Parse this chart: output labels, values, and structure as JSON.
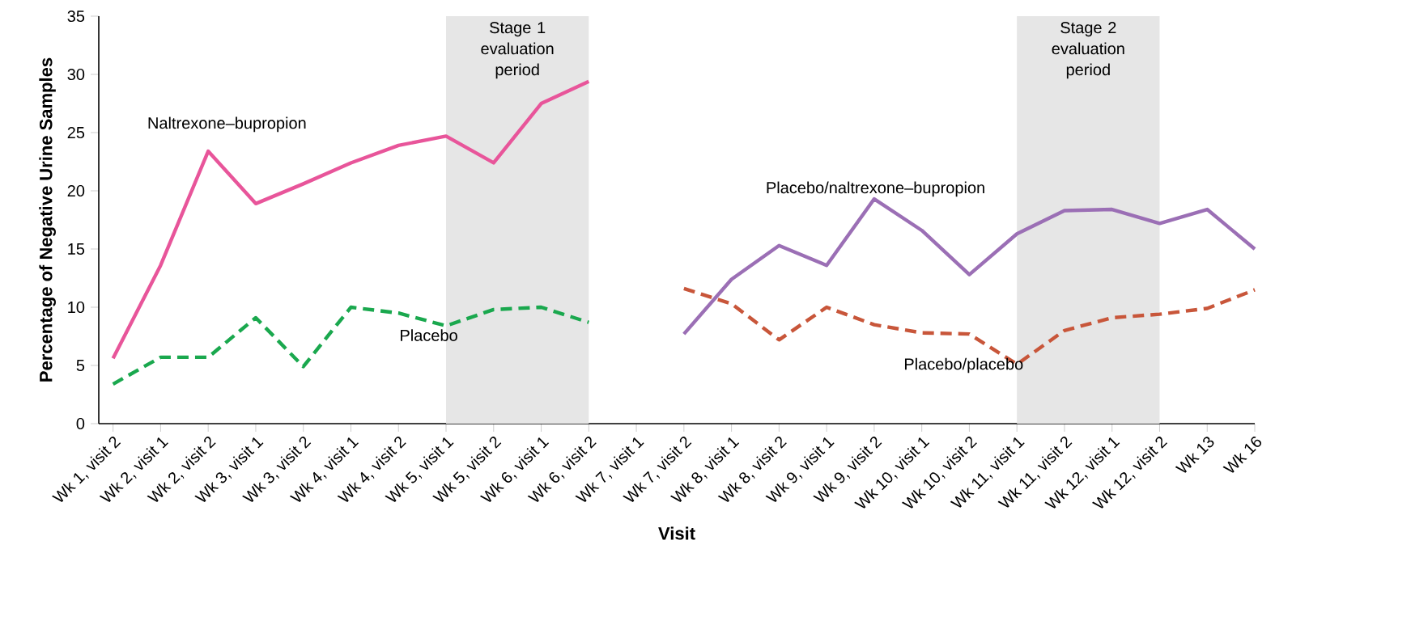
{
  "chart_data": {
    "type": "line",
    "xlabel": "Visit",
    "ylabel": "Percentage of Negative Urine Samples",
    "categories": [
      "Wk 1, visit 2",
      "Wk 2, visit 1",
      "Wk 2, visit 2",
      "Wk 3, visit 1",
      "Wk 3, visit 2",
      "Wk 4, visit 1",
      "Wk 4, visit 2",
      "Wk 5, visit 1",
      "Wk 5, visit 2",
      "Wk 6, visit 1",
      "Wk 6, visit 2",
      "Wk 7, visit 1",
      "Wk 7, visit 2",
      "Wk 8, visit 1",
      "Wk 8, visit 2",
      "Wk 9, visit 1",
      "Wk 9, visit 2",
      "Wk 10, visit 1",
      "Wk 10, visit 2",
      "Wk 11, visit 1",
      "Wk 11, visit 2",
      "Wk 12, visit 1",
      "Wk 12, visit 2",
      "Wk 13",
      "Wk 16"
    ],
    "series": [
      {
        "name": "Naltrexone–bupropion",
        "color": "#e8559a",
        "line_style": "solid",
        "values": [
          5.6,
          13.6,
          23.4,
          18.9,
          20.6,
          22.4,
          23.9,
          24.7,
          22.4,
          27.5,
          29.4,
          null,
          null,
          null,
          null,
          null,
          null,
          null,
          null,
          null,
          null,
          null,
          null,
          null,
          null
        ]
      },
      {
        "name": "Placebo",
        "color": "#1aa84e",
        "line_style": "dashed",
        "values": [
          3.4,
          5.7,
          5.7,
          9.1,
          4.9,
          10.0,
          9.5,
          8.4,
          9.8,
          10.0,
          8.7,
          null,
          null,
          null,
          null,
          null,
          null,
          null,
          null,
          null,
          null,
          null,
          null,
          null,
          null
        ]
      },
      {
        "name": "Placebo/naltrexone–bupropion",
        "color": "#9b6fb5",
        "line_style": "solid",
        "values": [
          null,
          null,
          null,
          null,
          null,
          null,
          null,
          null,
          null,
          null,
          null,
          null,
          7.7,
          12.4,
          15.3,
          13.6,
          19.3,
          16.6,
          12.8,
          16.3,
          18.3,
          18.4,
          17.2,
          18.4,
          15.0
        ]
      },
      {
        "name": "Placebo/placebo",
        "color": "#c8563a",
        "line_style": "dashed",
        "values": [
          null,
          null,
          null,
          null,
          null,
          null,
          null,
          null,
          null,
          null,
          null,
          null,
          11.6,
          10.3,
          7.2,
          10.0,
          8.5,
          7.8,
          7.7,
          5.1,
          8.0,
          9.1,
          9.4,
          9.9,
          11.5
        ]
      }
    ],
    "bands": [
      {
        "axis": "x",
        "from": "Wk 5, visit 1",
        "to": "Wk 6, visit 2",
        "label": "Stage 1 evaluation period",
        "color": "#e6e6e6"
      },
      {
        "axis": "x",
        "from": "Wk 11, visit 1",
        "to": "Wk 12, visit 2",
        "label": "Stage 2 evaluation period",
        "color": "#e6e6e6"
      }
    ],
    "ylim": [
      0,
      35
    ],
    "yticks": [
      0,
      5,
      10,
      15,
      20,
      25,
      30,
      35
    ],
    "grid": false,
    "legend": false
  }
}
